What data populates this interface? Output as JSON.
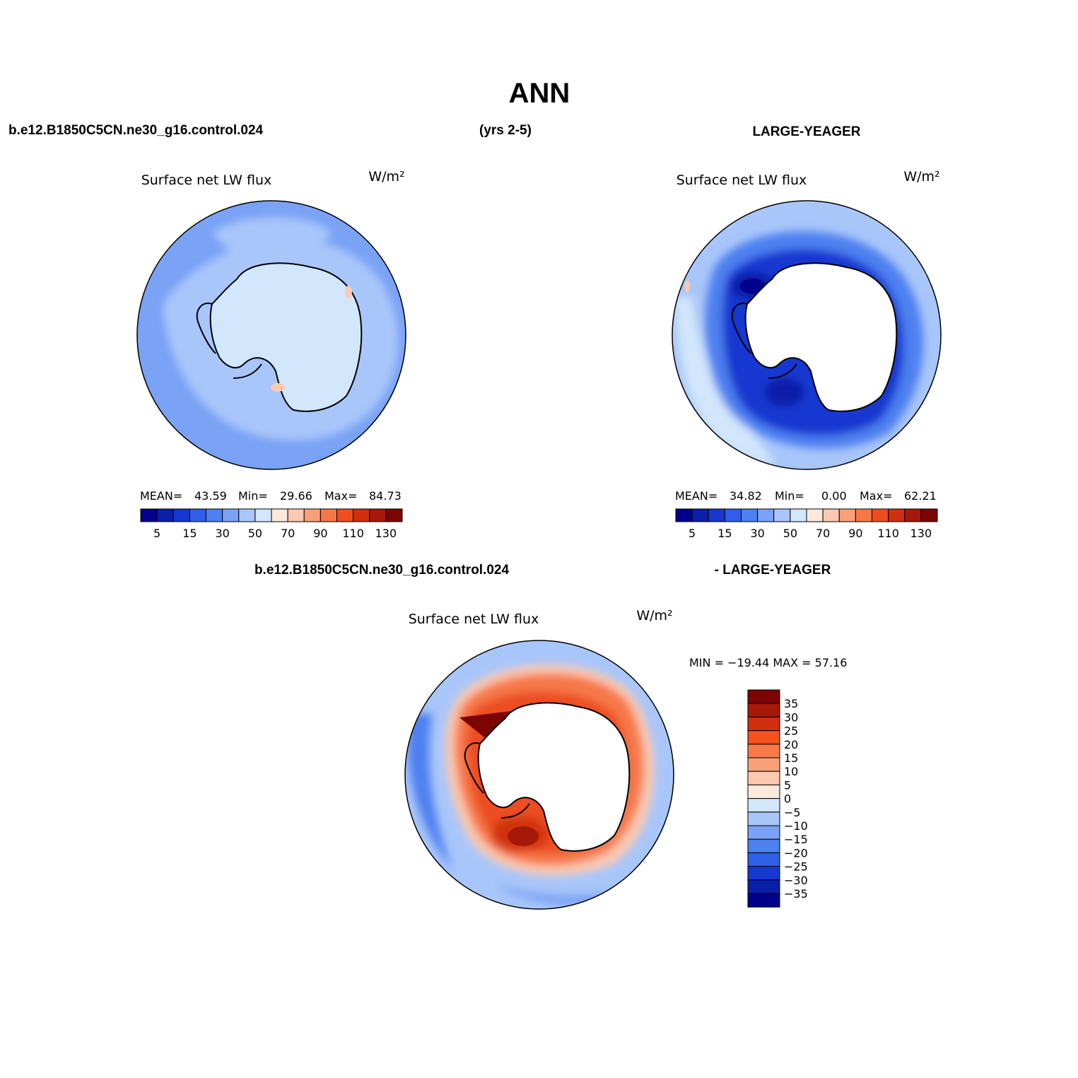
{
  "title": "ANN",
  "header": {
    "case_name": "b.e12.B1850C5CN.ne30_g16.control.024",
    "years": "(yrs 2-5)",
    "obs_name": "LARGE-YEAGER",
    "diff_case": "b.e12.B1850C5CN.ne30_g16.control.024",
    "diff_obs": "- LARGE-YEAGER"
  },
  "panels": {
    "model": {
      "variable": "Surface net LW flux",
      "units": "W/m²",
      "stats": {
        "mean_label": "MEAN=",
        "mean": "43.59",
        "min_label": "Min=",
        "min": "29.66",
        "max_label": "Max=",
        "max": "84.73"
      }
    },
    "obs": {
      "variable": "Surface net LW flux",
      "units": "W/m²",
      "stats": {
        "mean_label": "MEAN=",
        "mean": "34.82",
        "min_label": "Min=",
        "min": "0.00",
        "max_label": "Max=",
        "max": "62.21"
      }
    },
    "diff": {
      "variable": "Surface net LW flux",
      "units": "W/m²",
      "minmax": "MIN = −19.44 MAX =  57.16"
    }
  },
  "colorbar_abs": {
    "colors": [
      "#00008c",
      "#0a1fa8",
      "#1638d0",
      "#2f5ee8",
      "#4d80f0",
      "#7aa2f5",
      "#a9c6fa",
      "#d2e6fc",
      "#fde9dc",
      "#fcc9b0",
      "#f9a078",
      "#f67848",
      "#ec4e20",
      "#d03010",
      "#a61808",
      "#7c0404"
    ],
    "tick_labels": [
      "5",
      "15",
      "30",
      "50",
      "70",
      "90",
      "110",
      "130"
    ]
  },
  "colorbar_diff": {
    "colors": [
      "#7c0404",
      "#a61808",
      "#d03010",
      "#f6521d",
      "#f87a48",
      "#f9a078",
      "#fcc9b0",
      "#fde9dc",
      "#d2e6fc",
      "#a9c6fa",
      "#7aa2f5",
      "#4d80f0",
      "#2f5ee8",
      "#1638d0",
      "#0a1fa8",
      "#00008c"
    ],
    "tick_labels": [
      "35",
      "30",
      "25",
      "20",
      "15",
      "10",
      "5",
      "0",
      "−5",
      "−10",
      "−15",
      "−20",
      "−25",
      "−30",
      "−35"
    ]
  }
}
